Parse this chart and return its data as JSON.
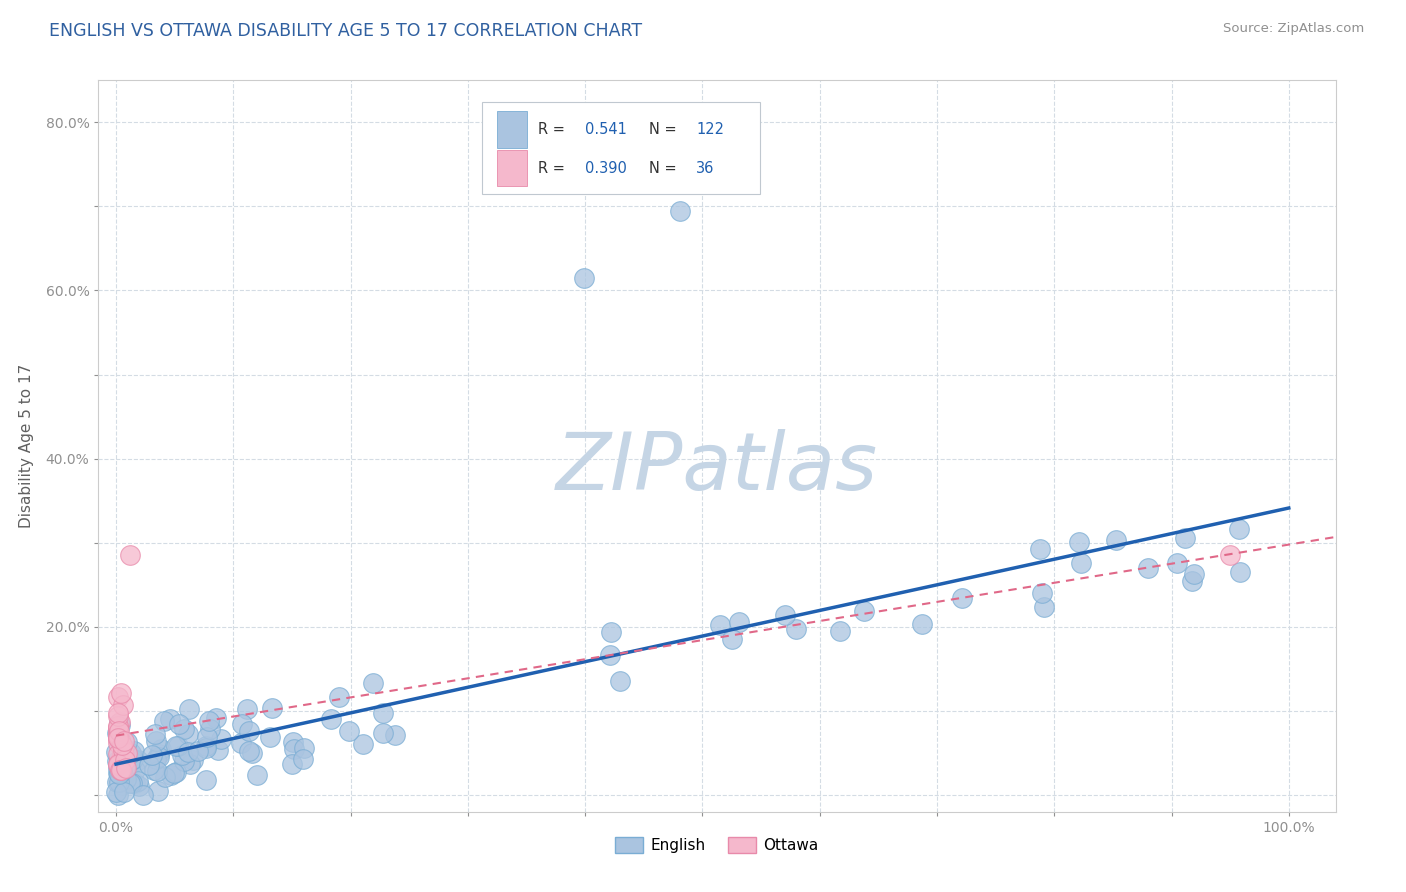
{
  "title": "ENGLISH VS OTTAWA DISABILITY AGE 5 TO 17 CORRELATION CHART",
  "source_text": "Source: ZipAtlas.com",
  "ylabel": "Disability Age 5 to 17",
  "R_english": 0.541,
  "N_english": 122,
  "R_ottawa": 0.39,
  "N_ottawa": 36,
  "english_color": "#aac4e0",
  "english_edge_color": "#7aadd4",
  "ottawa_color": "#f5b8cc",
  "ottawa_edge_color": "#e88aaa",
  "english_line_color": "#2060b0",
  "ottawa_line_color": "#e06888",
  "watermark_color": "#c5d5e5",
  "title_color": "#3060a0",
  "axis_label_color": "#606060",
  "tick_color": "#909090",
  "grid_color": "#d4dce4",
  "legend_text_color": "#2060b0",
  "legend_label_color": "#333333"
}
